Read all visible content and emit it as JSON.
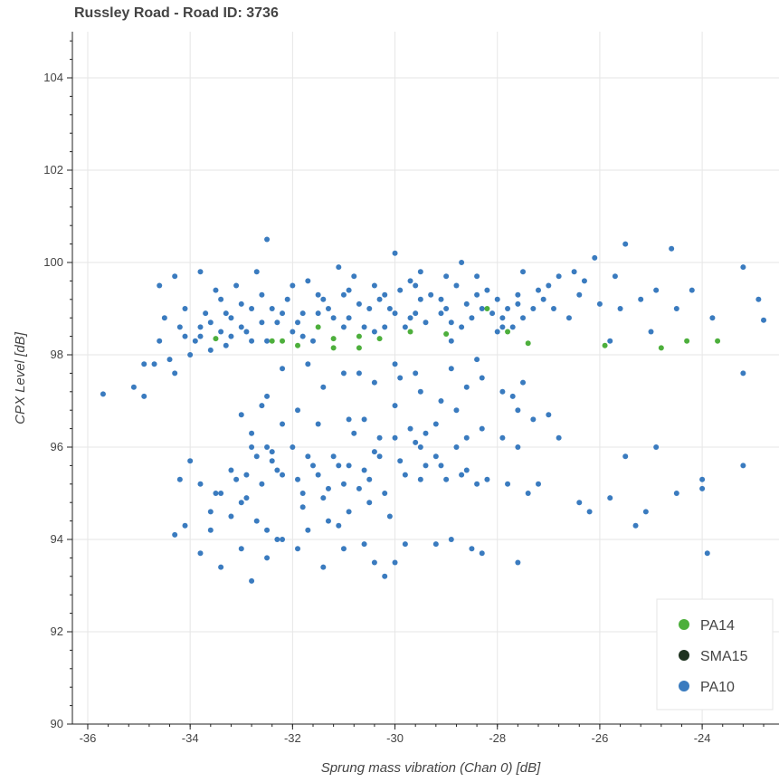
{
  "chart_data": {
    "type": "scatter",
    "title": "Russley Road - Road ID: 3736",
    "xlabel": "Sprung mass vibration (Chan 0) [dB]",
    "ylabel": "CPX Level [dB]",
    "xlim": [
      -36.3,
      -22.5
    ],
    "ylim": [
      90,
      105
    ],
    "xticks": [
      -36,
      -34,
      -32,
      -30,
      -28,
      -26,
      -24
    ],
    "yticks": [
      90,
      92,
      94,
      96,
      98,
      100,
      102,
      104
    ],
    "grid": true,
    "legend_position": "bottom-right",
    "legend": [
      {
        "name": "PA14",
        "color": "#4daf3c"
      },
      {
        "name": "SMA15",
        "color": "#1f3320"
      },
      {
        "name": "PA10",
        "color": "#3a7bbf"
      }
    ],
    "series": [
      {
        "name": "PA14",
        "color": "#4daf3c",
        "points": [
          [
            -33.5,
            98.35
          ],
          [
            -32.4,
            98.3
          ],
          [
            -32.2,
            98.3
          ],
          [
            -31.9,
            98.2
          ],
          [
            -31.5,
            98.6
          ],
          [
            -31.2,
            98.35
          ],
          [
            -30.7,
            98.4
          ],
          [
            -30.3,
            98.35
          ],
          [
            -29.7,
            98.5
          ],
          [
            -29.0,
            98.45
          ],
          [
            -28.2,
            99.0
          ],
          [
            -27.8,
            98.5
          ],
          [
            -27.4,
            98.25
          ],
          [
            -25.9,
            98.2
          ],
          [
            -24.8,
            98.15
          ],
          [
            -24.3,
            98.3
          ],
          [
            -23.7,
            98.3
          ],
          [
            -30.7,
            98.15
          ],
          [
            -31.2,
            98.15
          ]
        ]
      },
      {
        "name": "SMA15",
        "color": "#1f3320",
        "points": []
      },
      {
        "name": "PA10",
        "color": "#3a7bbf",
        "points": [
          [
            -35.7,
            97.15
          ],
          [
            -35.1,
            97.3
          ],
          [
            -34.9,
            97.1
          ],
          [
            -34.9,
            97.8
          ],
          [
            -34.7,
            97.8
          ],
          [
            -34.6,
            98.3
          ],
          [
            -34.4,
            97.9
          ],
          [
            -34.3,
            97.6
          ],
          [
            -34.1,
            98.4
          ],
          [
            -34.0,
            98.0
          ],
          [
            -33.8,
            98.6
          ],
          [
            -33.6,
            98.1
          ],
          [
            -33.4,
            98.5
          ],
          [
            -33.2,
            98.8
          ],
          [
            -33.0,
            99.1
          ],
          [
            -32.8,
            98.3
          ],
          [
            -32.6,
            99.3
          ],
          [
            -32.3,
            98.7
          ],
          [
            -32.0,
            99.5
          ],
          [
            -31.8,
            98.9
          ],
          [
            -31.5,
            99.3
          ],
          [
            -31.2,
            98.8
          ],
          [
            -30.9,
            99.4
          ],
          [
            -30.6,
            98.6
          ],
          [
            -30.3,
            99.2
          ],
          [
            -30.0,
            98.9
          ],
          [
            -29.7,
            99.6
          ],
          [
            -29.4,
            98.7
          ],
          [
            -29.1,
            99.2
          ],
          [
            -28.8,
            99.5
          ],
          [
            -28.5,
            98.8
          ],
          [
            -28.2,
            99.4
          ],
          [
            -27.9,
            98.8
          ],
          [
            -27.6,
            99.3
          ],
          [
            -27.3,
            99.0
          ],
          [
            -27.0,
            99.5
          ],
          [
            -26.6,
            98.8
          ],
          [
            -26.3,
            99.6
          ],
          [
            -26.0,
            99.1
          ],
          [
            -25.8,
            98.3
          ],
          [
            -25.5,
            100.4
          ],
          [
            -25.2,
            99.2
          ],
          [
            -24.9,
            99.4
          ],
          [
            -24.6,
            100.3
          ],
          [
            -24.2,
            99.4
          ],
          [
            -23.8,
            98.8
          ],
          [
            -23.2,
            99.9
          ],
          [
            -22.9,
            99.2
          ],
          [
            -22.8,
            98.75
          ],
          [
            -32.5,
            100.5
          ],
          [
            -30.0,
            100.2
          ],
          [
            -29.5,
            99.8
          ],
          [
            -28.7,
            100.0
          ],
          [
            -27.5,
            99.8
          ],
          [
            -26.1,
            100.1
          ],
          [
            -33.8,
            99.8
          ],
          [
            -34.3,
            99.7
          ],
          [
            -33.1,
            99.5
          ],
          [
            -31.1,
            99.9
          ],
          [
            -34.6,
            99.5
          ],
          [
            -33.3,
            98.2
          ],
          [
            -32.9,
            98.5
          ],
          [
            -31.6,
            98.3
          ],
          [
            -30.2,
            98.6
          ],
          [
            -28.9,
            98.3
          ],
          [
            -27.9,
            98.6
          ],
          [
            -34.2,
            98.6
          ],
          [
            -33.7,
            98.9
          ],
          [
            -33.4,
            99.2
          ],
          [
            -32.7,
            99.8
          ],
          [
            -32.1,
            99.2
          ],
          [
            -31.3,
            99.0
          ],
          [
            -30.8,
            99.7
          ],
          [
            -30.4,
            99.5
          ],
          [
            -29.9,
            99.4
          ],
          [
            -29.6,
            98.9
          ],
          [
            -29.0,
            99.0
          ],
          [
            -28.4,
            99.7
          ],
          [
            -28.0,
            99.2
          ],
          [
            -27.7,
            98.6
          ],
          [
            -27.2,
            99.4
          ],
          [
            -26.8,
            99.7
          ],
          [
            -26.4,
            99.3
          ],
          [
            -25.6,
            99.0
          ],
          [
            -25.0,
            98.5
          ],
          [
            -24.5,
            99.0
          ],
          [
            -33.9,
            98.3
          ],
          [
            -33.6,
            98.7
          ],
          [
            -33.0,
            98.6
          ],
          [
            -32.4,
            99.0
          ],
          [
            -31.9,
            98.7
          ],
          [
            -31.4,
            99.2
          ],
          [
            -30.9,
            98.8
          ],
          [
            -30.5,
            99.0
          ],
          [
            -29.8,
            98.6
          ],
          [
            -29.3,
            99.3
          ],
          [
            -28.6,
            99.1
          ],
          [
            -28.1,
            98.9
          ],
          [
            -27.5,
            98.8
          ],
          [
            -26.9,
            99.0
          ],
          [
            -34.5,
            98.8
          ],
          [
            -34.1,
            99.0
          ],
          [
            -33.5,
            99.4
          ],
          [
            -32.8,
            99.0
          ],
          [
            -32.2,
            98.9
          ],
          [
            -31.7,
            99.6
          ],
          [
            -31.0,
            99.3
          ],
          [
            -30.1,
            99.0
          ],
          [
            -29.5,
            99.2
          ],
          [
            -28.9,
            98.7
          ],
          [
            -28.3,
            99.0
          ],
          [
            -27.8,
            99.0
          ],
          [
            -27.1,
            99.2
          ],
          [
            -26.5,
            99.8
          ],
          [
            -25.7,
            99.7
          ],
          [
            -33.3,
            98.9
          ],
          [
            -32.6,
            98.7
          ],
          [
            -32.0,
            98.5
          ],
          [
            -31.5,
            98.9
          ],
          [
            -30.7,
            99.1
          ],
          [
            -30.2,
            99.3
          ],
          [
            -29.6,
            99.5
          ],
          [
            -29.0,
            99.7
          ],
          [
            -28.4,
            99.3
          ],
          [
            -27.6,
            99.1
          ],
          [
            -33.8,
            98.4
          ],
          [
            -33.2,
            98.4
          ],
          [
            -32.5,
            98.3
          ],
          [
            -31.8,
            98.4
          ],
          [
            -31.0,
            98.6
          ],
          [
            -30.4,
            98.5
          ],
          [
            -29.7,
            98.8
          ],
          [
            -29.1,
            98.9
          ],
          [
            -28.7,
            98.6
          ],
          [
            -28.0,
            98.5
          ],
          [
            -34.2,
            95.3
          ],
          [
            -34.0,
            95.7
          ],
          [
            -33.8,
            95.2
          ],
          [
            -33.6,
            94.6
          ],
          [
            -33.4,
            95.0
          ],
          [
            -33.2,
            95.5
          ],
          [
            -33.0,
            94.8
          ],
          [
            -32.8,
            96.0
          ],
          [
            -32.6,
            95.2
          ],
          [
            -32.4,
            95.7
          ],
          [
            -32.2,
            95.4
          ],
          [
            -32.0,
            96.0
          ],
          [
            -31.8,
            95.0
          ],
          [
            -31.6,
            95.6
          ],
          [
            -31.4,
            94.9
          ],
          [
            -31.2,
            95.8
          ],
          [
            -31.0,
            95.2
          ],
          [
            -30.8,
            96.3
          ],
          [
            -30.6,
            95.5
          ],
          [
            -30.4,
            95.9
          ],
          [
            -30.2,
            95.0
          ],
          [
            -30.0,
            96.2
          ],
          [
            -29.8,
            95.4
          ],
          [
            -29.6,
            96.1
          ],
          [
            -29.4,
            95.6
          ],
          [
            -29.2,
            95.8
          ],
          [
            -29.0,
            95.3
          ],
          [
            -28.8,
            96.0
          ],
          [
            -28.6,
            95.5
          ],
          [
            -28.4,
            95.2
          ],
          [
            -28.2,
            95.3
          ],
          [
            -27.8,
            95.2
          ],
          [
            -27.6,
            96.0
          ],
          [
            -27.4,
            95.0
          ],
          [
            -27.2,
            95.2
          ],
          [
            -26.8,
            96.2
          ],
          [
            -26.4,
            94.8
          ],
          [
            -26.2,
            94.6
          ],
          [
            -25.8,
            94.9
          ],
          [
            -25.5,
            95.8
          ],
          [
            -25.3,
            94.3
          ],
          [
            -25.1,
            94.6
          ],
          [
            -24.9,
            96.0
          ],
          [
            -24.5,
            95.0
          ],
          [
            -24.0,
            95.3
          ],
          [
            -24.0,
            95.1
          ],
          [
            -23.9,
            93.7
          ],
          [
            -23.2,
            95.6
          ],
          [
            -34.3,
            94.1
          ],
          [
            -34.1,
            94.3
          ],
          [
            -33.8,
            93.7
          ],
          [
            -33.4,
            93.4
          ],
          [
            -33.0,
            93.8
          ],
          [
            -32.8,
            93.1
          ],
          [
            -32.5,
            93.6
          ],
          [
            -32.2,
            94.0
          ],
          [
            -31.9,
            93.8
          ],
          [
            -31.4,
            93.4
          ],
          [
            -31.0,
            93.8
          ],
          [
            -30.6,
            93.9
          ],
          [
            -30.4,
            93.5
          ],
          [
            -30.2,
            93.2
          ],
          [
            -30.0,
            93.5
          ],
          [
            -29.8,
            93.9
          ],
          [
            -29.2,
            93.9
          ],
          [
            -28.9,
            94.0
          ],
          [
            -28.5,
            93.8
          ],
          [
            -28.3,
            93.7
          ],
          [
            -27.6,
            93.5
          ],
          [
            -33.6,
            94.2
          ],
          [
            -33.2,
            94.5
          ],
          [
            -32.7,
            94.4
          ],
          [
            -32.3,
            94.0
          ],
          [
            -31.8,
            94.7
          ],
          [
            -31.3,
            94.4
          ],
          [
            -30.9,
            94.6
          ],
          [
            -30.5,
            94.8
          ],
          [
            -30.1,
            94.5
          ],
          [
            -32.9,
            94.9
          ],
          [
            -32.5,
            94.2
          ],
          [
            -31.7,
            94.2
          ],
          [
            -31.1,
            94.3
          ],
          [
            -33.5,
            95.0
          ],
          [
            -33.1,
            95.3
          ],
          [
            -32.7,
            95.8
          ],
          [
            -32.3,
            95.5
          ],
          [
            -31.9,
            95.3
          ],
          [
            -31.5,
            95.4
          ],
          [
            -31.1,
            95.6
          ],
          [
            -30.7,
            95.1
          ],
          [
            -30.3,
            95.8
          ],
          [
            -29.9,
            95.7
          ],
          [
            -29.5,
            95.3
          ],
          [
            -29.1,
            95.6
          ],
          [
            -28.7,
            95.4
          ],
          [
            -32.9,
            95.4
          ],
          [
            -32.4,
            95.9
          ],
          [
            -31.7,
            95.8
          ],
          [
            -31.3,
            95.1
          ],
          [
            -30.9,
            95.6
          ],
          [
            -30.5,
            95.3
          ],
          [
            -32.2,
            96.5
          ],
          [
            -31.9,
            96.8
          ],
          [
            -31.5,
            96.5
          ],
          [
            -30.9,
            96.6
          ],
          [
            -30.3,
            96.2
          ],
          [
            -29.7,
            96.4
          ],
          [
            -29.2,
            96.5
          ],
          [
            -28.8,
            96.8
          ],
          [
            -28.3,
            96.4
          ],
          [
            -27.9,
            96.2
          ],
          [
            -27.6,
            96.8
          ],
          [
            -27.3,
            96.6
          ],
          [
            -27.0,
            96.7
          ],
          [
            -32.8,
            96.3
          ],
          [
            -32.5,
            96.0
          ],
          [
            -30.6,
            96.6
          ],
          [
            -30.0,
            96.9
          ],
          [
            -29.5,
            96.0
          ],
          [
            -28.6,
            96.2
          ],
          [
            -27.7,
            97.1
          ],
          [
            -30.7,
            97.6
          ],
          [
            -30.4,
            97.4
          ],
          [
            -29.9,
            97.5
          ],
          [
            -29.5,
            97.2
          ],
          [
            -29.1,
            97.0
          ],
          [
            -28.6,
            97.3
          ],
          [
            -28.3,
            97.5
          ],
          [
            -27.9,
            97.2
          ],
          [
            -27.5,
            97.4
          ],
          [
            -32.5,
            97.1
          ],
          [
            -31.4,
            97.3
          ],
          [
            -31.0,
            97.6
          ],
          [
            -30.0,
            97.8
          ],
          [
            -29.6,
            97.6
          ],
          [
            -28.9,
            97.7
          ],
          [
            -28.4,
            97.9
          ],
          [
            -32.2,
            97.7
          ],
          [
            -31.7,
            97.8
          ],
          [
            -32.6,
            96.9
          ],
          [
            -33.0,
            96.7
          ],
          [
            -29.4,
            96.3
          ],
          [
            -23.2,
            97.6
          ]
        ]
      }
    ]
  }
}
